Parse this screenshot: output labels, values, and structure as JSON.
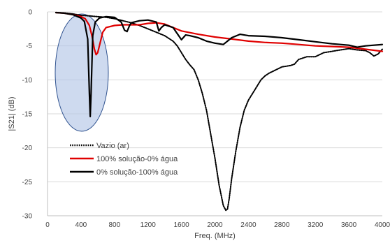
{
  "chart_data": {
    "type": "line",
    "title": "",
    "xlabel": "Freq. (MHz)",
    "ylabel": "|S21| (dB)",
    "xlim": [
      0,
      4000
    ],
    "ylim": [
      -30,
      0
    ],
    "x_ticks": [
      0,
      400,
      800,
      1200,
      1600,
      2000,
      2400,
      2800,
      3200,
      3600,
      4000
    ],
    "y_ticks": [
      0,
      -5,
      -10,
      -15,
      -20,
      -25,
      -30
    ],
    "grid": "horizontal",
    "legend_position": "lower-left",
    "annotation": "ellipse",
    "series": [
      {
        "name": "Vazio (ar)",
        "color": "#000000",
        "style": "dotted",
        "x": [
          100,
          200,
          300,
          400,
          500,
          600,
          700,
          800,
          900,
          1000,
          1100,
          1200,
          1300,
          1400,
          1500,
          1550,
          1600,
          1650,
          1700,
          1750,
          1800,
          1850,
          1900,
          1950,
          2000,
          2050,
          2100,
          2130,
          2150,
          2170,
          2200,
          2250,
          2300,
          2350,
          2400,
          2450,
          2500,
          2550,
          2600,
          2650,
          2700,
          2750,
          2800,
          2850,
          2900,
          2950,
          3000,
          3050,
          3100,
          3150,
          3200,
          3300,
          3400,
          3500,
          3600,
          3700,
          3800,
          3850,
          3900,
          3950,
          4000
        ],
        "y": [
          -0.1,
          -0.15,
          -0.3,
          -0.5,
          -0.6,
          -0.7,
          -0.8,
          -1.0,
          -1.3,
          -1.6,
          -2.0,
          -2.5,
          -3.0,
          -3.5,
          -4.3,
          -5.0,
          -6.0,
          -7.0,
          -7.8,
          -8.5,
          -10.0,
          -12.0,
          -14.5,
          -18.0,
          -21.5,
          -25.5,
          -28.5,
          -29.2,
          -29.0,
          -27.5,
          -24.5,
          -20.5,
          -17.0,
          -14.5,
          -13.0,
          -12.0,
          -11.0,
          -10.0,
          -9.4,
          -9.0,
          -8.7,
          -8.4,
          -8.1,
          -8.0,
          -7.9,
          -7.7,
          -7.0,
          -6.8,
          -6.6,
          -6.6,
          -6.6,
          -6.0,
          -5.8,
          -5.6,
          -5.4,
          -5.6,
          -5.7,
          -6.0,
          -6.5,
          -6.2,
          -5.5
        ]
      },
      {
        "name": "100% solução-0% água",
        "color": "#e00000",
        "style": "solid",
        "x": [
          100,
          200,
          300,
          400,
          450,
          500,
          530,
          560,
          580,
          600,
          630,
          660,
          700,
          800,
          900,
          1000,
          1100,
          1200,
          1300,
          1400,
          1500,
          1600,
          1800,
          2000,
          2200,
          2400,
          2600,
          2800,
          3000,
          3200,
          3400,
          3600,
          3800,
          4000
        ],
        "y": [
          -0.1,
          -0.2,
          -0.4,
          -0.7,
          -1.0,
          -2.0,
          -3.5,
          -5.5,
          -6.3,
          -6.0,
          -4.5,
          -3.0,
          -2.3,
          -2.0,
          -1.9,
          -1.9,
          -1.9,
          -1.7,
          -1.6,
          -1.8,
          -2.3,
          -2.8,
          -3.3,
          -3.7,
          -4.0,
          -4.3,
          -4.5,
          -4.6,
          -4.8,
          -5.0,
          -5.1,
          -5.2,
          -5.5,
          -5.8
        ]
      },
      {
        "name": "0% solução-100% água",
        "color": "#000000",
        "style": "solid",
        "x": [
          100,
          200,
          300,
          400,
          440,
          480,
          500,
          510,
          520,
          540,
          570,
          620,
          700,
          800,
          880,
          920,
          950,
          980,
          1000,
          1100,
          1200,
          1300,
          1330,
          1360,
          1400,
          1500,
          1600,
          1650,
          1700,
          1800,
          1900,
          2000,
          2100,
          2150,
          2200,
          2300,
          2400,
          2600,
          2800,
          3000,
          3200,
          3400,
          3600,
          3700,
          3800,
          3900,
          4000
        ],
        "y": [
          -0.1,
          -0.2,
          -0.4,
          -0.9,
          -1.4,
          -4.0,
          -12.0,
          -15.4,
          -12.0,
          -3.5,
          -1.5,
          -0.9,
          -0.7,
          -0.8,
          -1.5,
          -2.7,
          -2.9,
          -2.0,
          -1.6,
          -1.3,
          -1.2,
          -1.5,
          -2.8,
          -2.3,
          -1.9,
          -2.3,
          -4.1,
          -3.4,
          -3.5,
          -3.8,
          -4.3,
          -4.6,
          -4.8,
          -4.3,
          -3.8,
          -3.3,
          -3.5,
          -3.6,
          -3.8,
          -4.1,
          -4.4,
          -4.7,
          -4.9,
          -5.2,
          -5.0,
          -4.9,
          -4.8
        ]
      }
    ]
  }
}
